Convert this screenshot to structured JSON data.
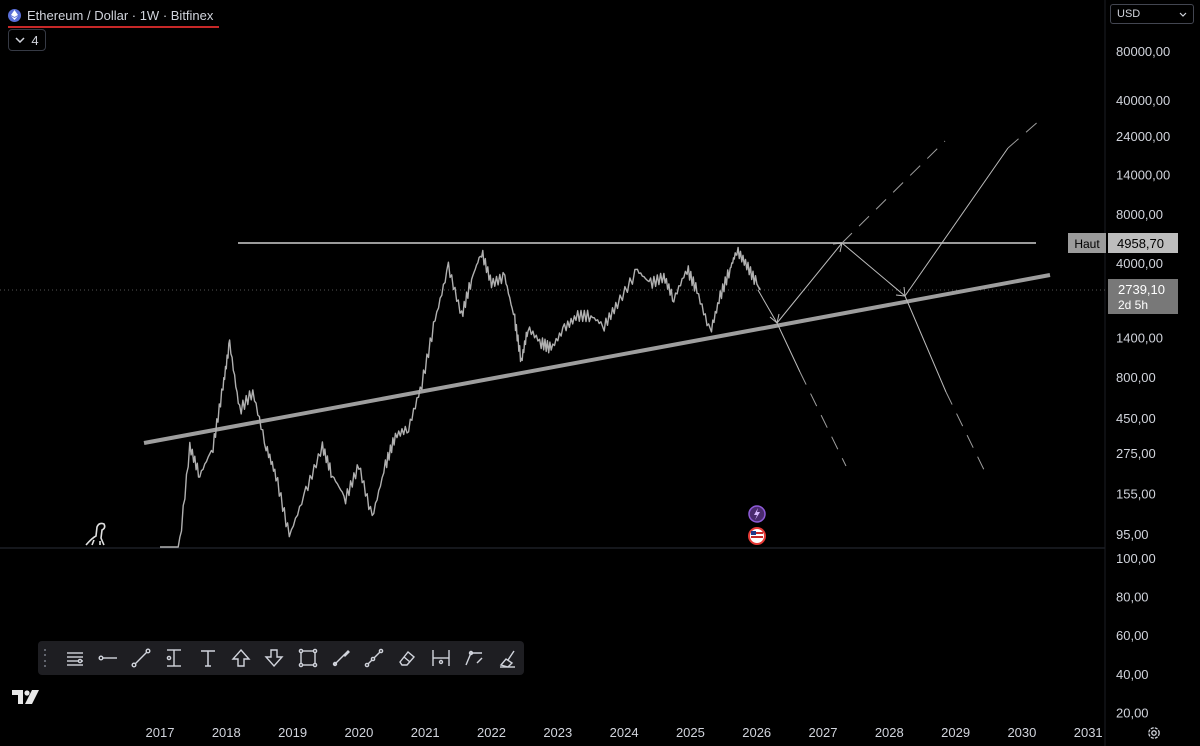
{
  "header": {
    "symbol_title": "Ethereum / Dollar · 1W · Bitfinex",
    "indicators_count": "4",
    "currency": "USD"
  },
  "labels": {
    "top_line_label": "Haut",
    "top_line_price": "4958,70",
    "current_price": "2739,10",
    "countdown": "2d 5h"
  },
  "price_axis": [
    "80000,00",
    "40000,00",
    "24000,00",
    "14000,00",
    "8000,00",
    "4000,00",
    "1400,00",
    "800,00",
    "450,00",
    "275,00",
    "155,00",
    "95,00"
  ],
  "volume_axis": [
    "100,00",
    "80,00",
    "60,00",
    "40,00",
    "20,00"
  ],
  "time_axis": [
    "2017",
    "2018",
    "2019",
    "2020",
    "2021",
    "2022",
    "2023",
    "2024",
    "2025",
    "2026",
    "2027",
    "2028",
    "2029",
    "2030",
    "2031"
  ],
  "price_series": [
    [
      "2017.00",
      8
    ],
    [
      "2017.25",
      50
    ],
    [
      "2017.45",
      300
    ],
    [
      "2017.6",
      200
    ],
    [
      "2017.8",
      300
    ],
    [
      "2017.95",
      700
    ],
    [
      "2018.05",
      1300
    ],
    [
      "2018.2",
      500
    ],
    [
      "2018.4",
      650
    ],
    [
      "2018.6",
      300
    ],
    [
      "2018.75",
      200
    ],
    [
      "2018.95",
      85
    ],
    [
      "2019.2",
      160
    ],
    [
      "2019.45",
      300
    ],
    [
      "2019.6",
      200
    ],
    [
      "2019.8",
      145
    ],
    [
      "2020.0",
      230
    ],
    [
      "2020.2",
      110
    ],
    [
      "2020.4",
      230
    ],
    [
      "2020.55",
      350
    ],
    [
      "2020.75",
      390
    ],
    [
      "2020.95",
      730
    ],
    [
      "2021.15",
      1800
    ],
    [
      "2021.35",
      3800
    ],
    [
      "2021.55",
      1900
    ],
    [
      "2021.7",
      3200
    ],
    [
      "2021.85",
      4700
    ],
    [
      "2022.0",
      3000
    ],
    [
      "2022.2",
      3300
    ],
    [
      "2022.35",
      1800
    ],
    [
      "2022.45",
      1000
    ],
    [
      "2022.55",
      1600
    ],
    [
      "2022.75",
      1300
    ],
    [
      "2022.9",
      1200
    ],
    [
      "2023.1",
      1600
    ],
    [
      "2023.3",
      1900
    ],
    [
      "2023.5",
      1900
    ],
    [
      "2023.7",
      1650
    ],
    [
      "2023.9",
      2250
    ],
    [
      "2024.2",
      3600
    ],
    [
      "2024.4",
      3000
    ],
    [
      "2024.6",
      3300
    ],
    [
      "2024.75",
      2400
    ],
    [
      "2024.95",
      3700
    ],
    [
      "2025.1",
      2700
    ],
    [
      "2025.3",
      1500
    ],
    [
      "2025.45",
      2500
    ],
    [
      "2025.6",
      3700
    ],
    [
      "2025.7",
      4800
    ],
    [
      "2025.85",
      3900
    ],
    [
      "2026.0",
      3000
    ],
    [
      "2026.05",
      2739
    ]
  ],
  "toolbar": {
    "tools": [
      "lines-icon",
      "horizontal-ray-icon",
      "trend-line-icon",
      "price-range-icon",
      "text-icon",
      "arrow-up-icon",
      "arrow-down-icon",
      "rectangle-icon",
      "brush-icon",
      "path-icon",
      "eraser-icon",
      "date-range-icon",
      "pattern-icon",
      "cleanup-icon"
    ]
  },
  "events": {
    "flash_icon": "flash-event-icon",
    "us_flag_icon": "us-flag-event-icon"
  }
}
